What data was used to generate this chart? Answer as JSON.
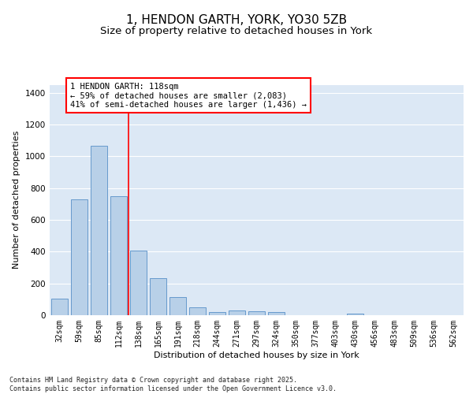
{
  "title": "1, HENDON GARTH, YORK, YO30 5ZB",
  "subtitle": "Size of property relative to detached houses in York",
  "xlabel": "Distribution of detached houses by size in York",
  "ylabel": "Number of detached properties",
  "categories": [
    "32sqm",
    "59sqm",
    "85sqm",
    "112sqm",
    "138sqm",
    "165sqm",
    "191sqm",
    "218sqm",
    "244sqm",
    "271sqm",
    "297sqm",
    "324sqm",
    "350sqm",
    "377sqm",
    "403sqm",
    "430sqm",
    "456sqm",
    "483sqm",
    "509sqm",
    "536sqm",
    "562sqm"
  ],
  "values": [
    105,
    730,
    1065,
    750,
    405,
    235,
    115,
    50,
    20,
    28,
    25,
    18,
    0,
    0,
    0,
    10,
    0,
    0,
    0,
    0,
    0
  ],
  "bar_color": "#b8d0e8",
  "bar_edge_color": "#6699cc",
  "vline_color": "red",
  "annotation_line1": "1 HENDON GARTH: 118sqm",
  "annotation_line2": "← 59% of detached houses are smaller (2,083)",
  "annotation_line3": "41% of semi-detached houses are larger (1,436) →",
  "annotation_box_color": "red",
  "ylim": [
    0,
    1450
  ],
  "yticks": [
    0,
    200,
    400,
    600,
    800,
    1000,
    1200,
    1400
  ],
  "background_color": "#dce8f5",
  "grid_color": "white",
  "footer_text": "Contains HM Land Registry data © Crown copyright and database right 2025.\nContains public sector information licensed under the Open Government Licence v3.0.",
  "title_fontsize": 11,
  "subtitle_fontsize": 9.5,
  "label_fontsize": 8,
  "tick_fontsize": 7,
  "annotation_fontsize": 7.5,
  "footer_fontsize": 6
}
